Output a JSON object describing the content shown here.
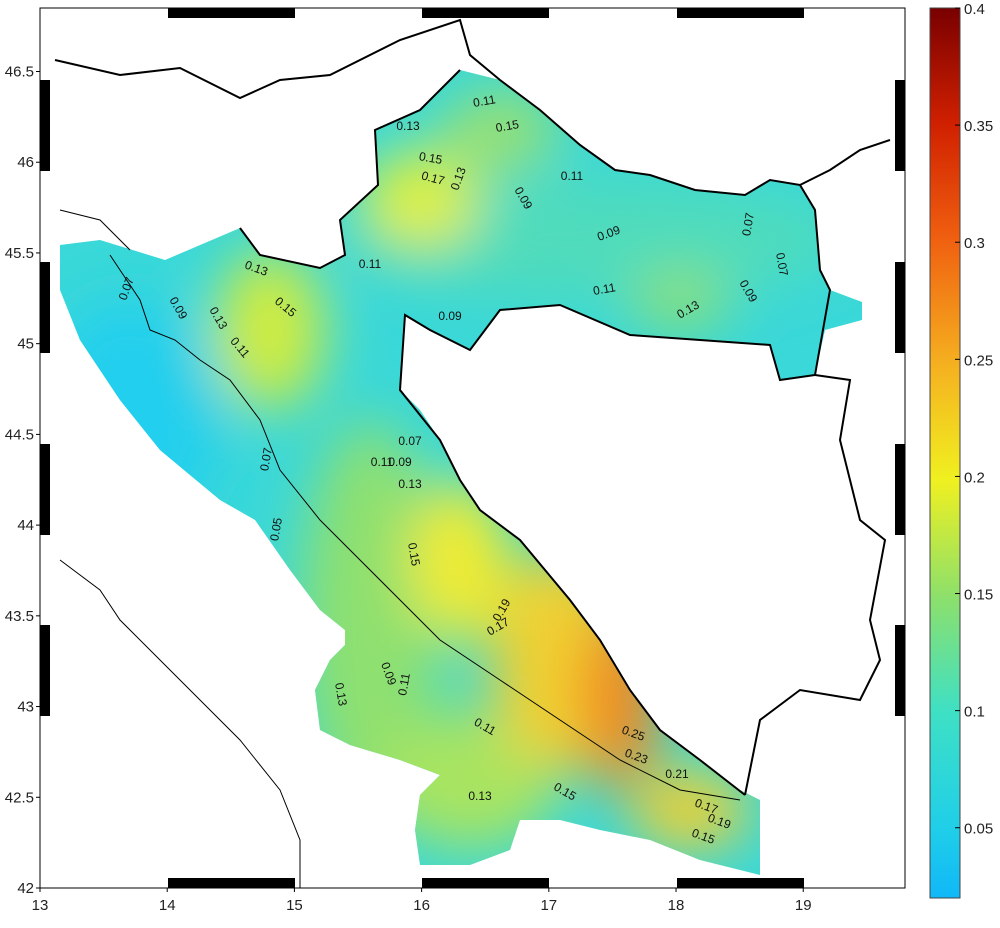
{
  "map": {
    "xlim": [
      13,
      19.8
    ],
    "xticks": [
      13,
      14,
      15,
      16,
      17,
      18,
      19
    ],
    "ylim": [
      42,
      46.85
    ],
    "yticks": [
      42,
      42.5,
      43,
      43.5,
      44,
      44.5,
      45,
      45.5,
      46,
      46.5
    ],
    "colorbar": {
      "range": [
        0.02,
        0.4
      ],
      "ticks": [
        0.05,
        0.1,
        0.15,
        0.2,
        0.25,
        0.3,
        0.35,
        0.4
      ]
    },
    "contour_labels": [
      0.11,
      0.13,
      0.15,
      0.15,
      0.17,
      0.13,
      0.11,
      0.09,
      0.09,
      0.07,
      0.07,
      0.11,
      0.13,
      0.15,
      0.07,
      0.09,
      0.13,
      0.11,
      0.11,
      0.09,
      0.13,
      0.09,
      0.07,
      0.09,
      0.11,
      0.13,
      0.07,
      0.05,
      0.15,
      0.19,
      0.17,
      0.09,
      0.11,
      0.13,
      0.11,
      0.25,
      0.23,
      0.21,
      0.15,
      0.13,
      0.19,
      0.15,
      0.17
    ]
  }
}
